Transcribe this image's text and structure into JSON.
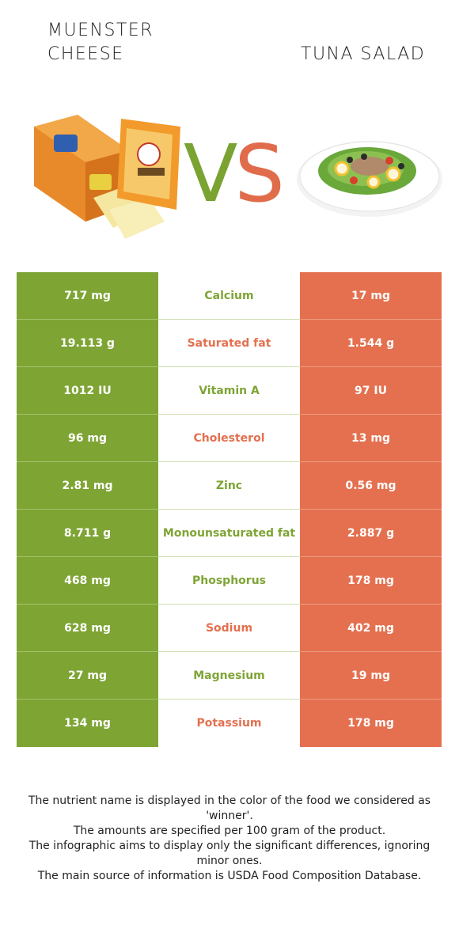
{
  "header": {
    "left_title": "MUENSTER CHEESE",
    "right_title": "TUNA SALAD",
    "vs_v": "V",
    "vs_s": "S"
  },
  "colors": {
    "winner_left": "#7ea434",
    "winner_right": "#e4704f"
  },
  "rows": [
    {
      "left": "717 mg",
      "nutrient": "Calcium",
      "right": "17 mg",
      "winner": "left"
    },
    {
      "left": "19.113 g",
      "nutrient": "Saturated fat",
      "right": "1.544 g",
      "winner": "right"
    },
    {
      "left": "1012 IU",
      "nutrient": "Vitamin A",
      "right": "97 IU",
      "winner": "left"
    },
    {
      "left": "96 mg",
      "nutrient": "Cholesterol",
      "right": "13 mg",
      "winner": "right"
    },
    {
      "left": "2.81 mg",
      "nutrient": "Zinc",
      "right": "0.56 mg",
      "winner": "left"
    },
    {
      "left": "8.711 g",
      "nutrient": "Monounsaturated fat",
      "right": "2.887 g",
      "winner": "left"
    },
    {
      "left": "468 mg",
      "nutrient": "Phosphorus",
      "right": "178 mg",
      "winner": "left"
    },
    {
      "left": "628 mg",
      "nutrient": "Sodium",
      "right": "402 mg",
      "winner": "right"
    },
    {
      "left": "27 mg",
      "nutrient": "Magnesium",
      "right": "19 mg",
      "winner": "left"
    },
    {
      "left": "134 mg",
      "nutrient": "Potassium",
      "right": "178 mg",
      "winner": "right"
    }
  ],
  "footer": {
    "line1": "The nutrient name is displayed in the color of the food we considered as 'winner'.",
    "line2": "The amounts are specified per 100 gram of the product.",
    "line3": "The infographic aims to display only the significant differences, ignoring minor ones.",
    "line4": "The main source of information is USDA Food Composition Database."
  }
}
